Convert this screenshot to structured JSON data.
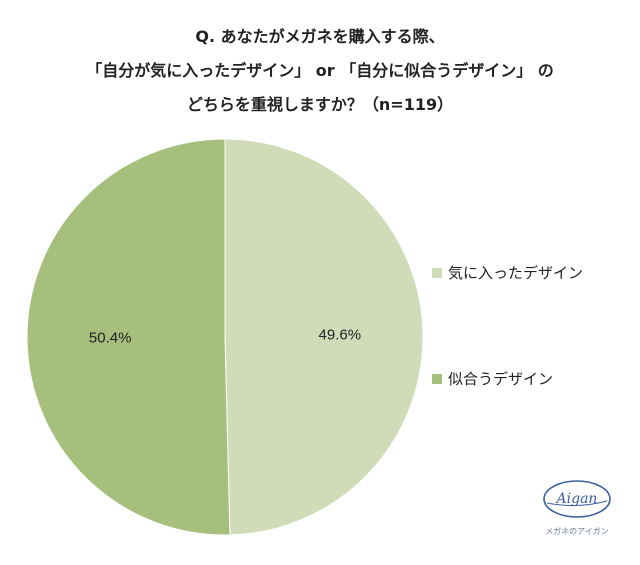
{
  "chart_data": {
    "type": "pie",
    "title_lines": [
      "Q. あなたがメガネを購入する際、",
      "「自分が気に入ったデザイン」 or 「自分に似合うデザイン」 の",
      "どちらを重視しますか？（n=119）"
    ],
    "slices": [
      {
        "label": "気に入ったデザイン",
        "value": 49.6,
        "value_label": "49.6%",
        "color": "#cfdcb7"
      },
      {
        "label": "似合うデザイン",
        "value": 50.4,
        "value_label": "50.4%",
        "color": "#a6bf7d"
      }
    ],
    "legend_position": "right"
  },
  "logo": {
    "wordmark": "Aigan",
    "caption": "メガネのアイガン",
    "color": "#3a5fa0"
  }
}
